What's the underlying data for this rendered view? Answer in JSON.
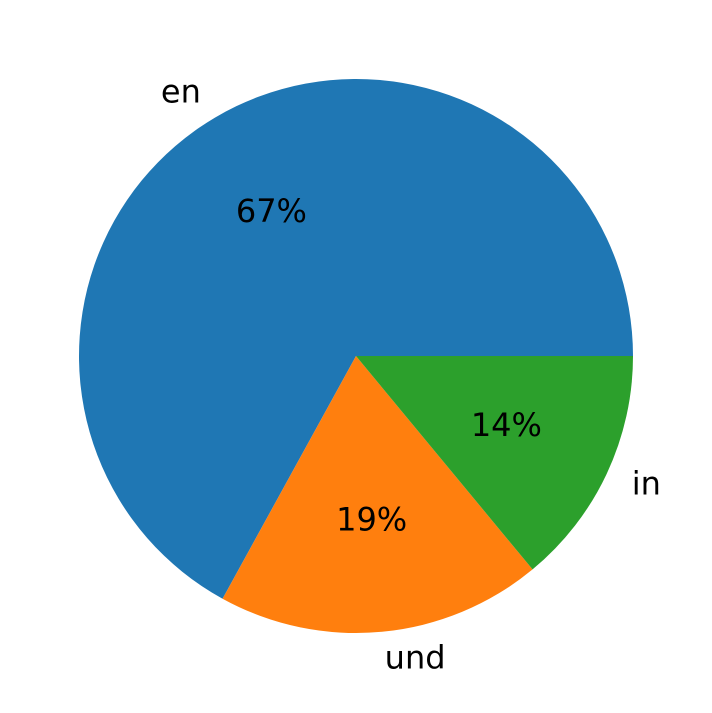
{
  "chart_data": {
    "type": "pie",
    "categories": [
      "en",
      "und",
      "in"
    ],
    "values": [
      67,
      19,
      14
    ],
    "value_labels": [
      "67%",
      "19%",
      "14%"
    ],
    "colors": [
      "#1f77b4",
      "#ff7f0e",
      "#2ca02c"
    ]
  }
}
